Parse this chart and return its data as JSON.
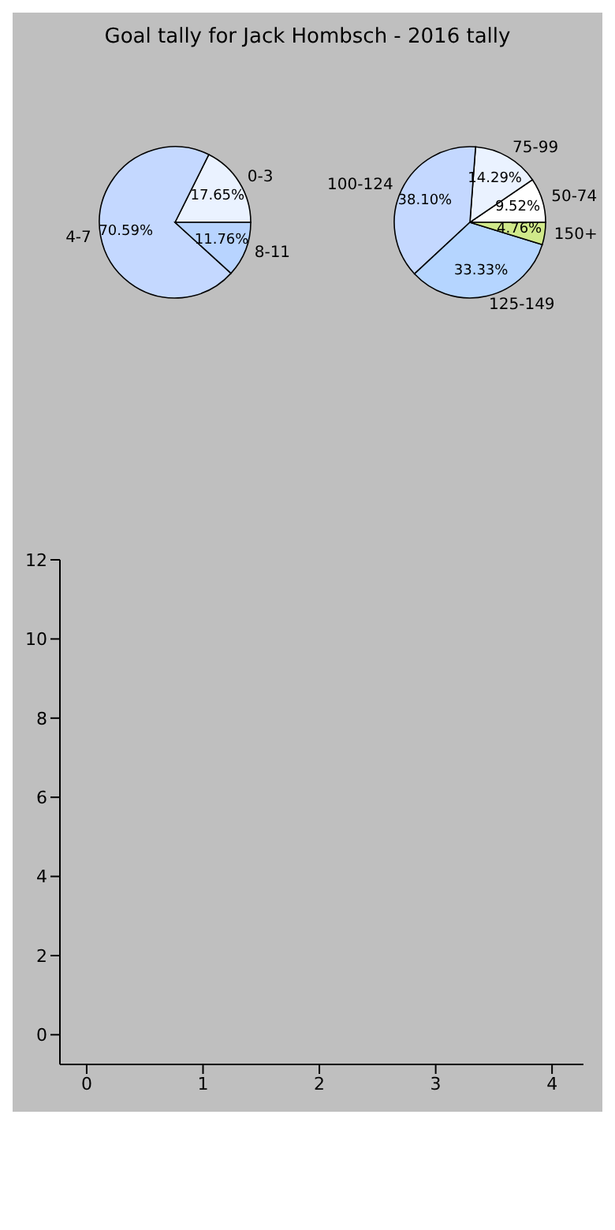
{
  "chart_data": [
    {
      "type": "pie",
      "title": "Goal tally for Jack Hombsch - 2016 tally",
      "categories": [
        "0-3",
        "4-7",
        "8-11"
      ],
      "values": [
        17.65,
        70.59,
        11.76
      ],
      "colors": [
        "#eaf2ff",
        "#c4d8ff",
        "#b8d4ff"
      ],
      "value_labels": [
        "17.65%",
        "70.59%",
        "11.76%"
      ]
    },
    {
      "type": "pie",
      "categories": [
        "50-74",
        "75-99",
        "100-124",
        "125-149",
        "150+"
      ],
      "values": [
        9.52,
        14.29,
        38.1,
        33.33,
        4.76
      ],
      "colors": [
        "#ffffff",
        "#eaf2ff",
        "#c4d8ff",
        "#b5d5ff",
        "#d0e98a"
      ],
      "value_labels": [
        "9.52%",
        "14.29%",
        "38.10%",
        "33.33%",
        "4.76%"
      ]
    },
    {
      "type": "scatter",
      "xlim": [
        -0.23,
        4.27
      ],
      "ylim": [
        -0.75,
        12
      ],
      "xticks": [
        0,
        1,
        2,
        3,
        4
      ],
      "yticks": [
        0,
        2,
        4,
        6,
        8,
        10,
        12
      ],
      "grid": false
    }
  ]
}
